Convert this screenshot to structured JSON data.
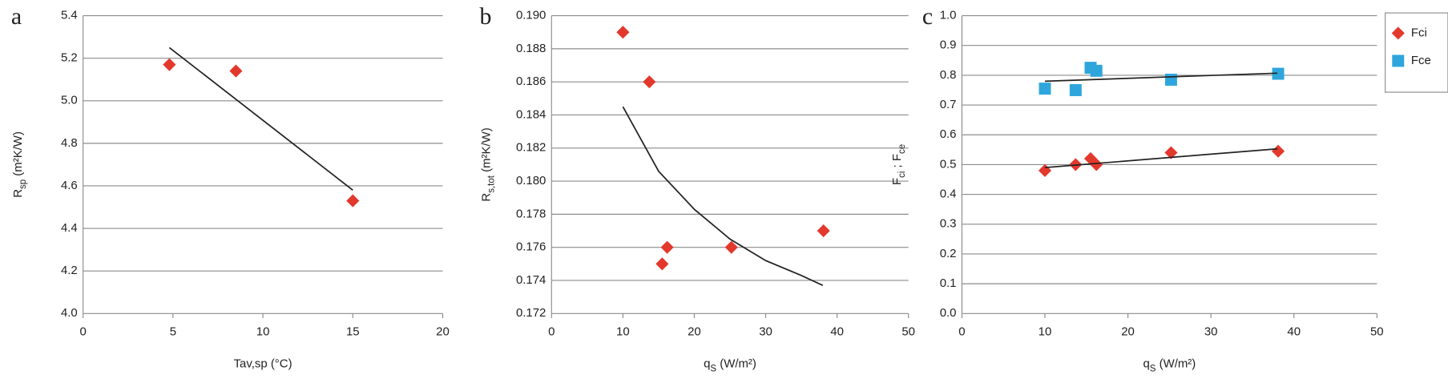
{
  "chart_data": [
    {
      "type": "scatter",
      "title": "a",
      "xlabel": [
        {
          "text": "Tav,sp (°C)"
        }
      ],
      "ylabel": [
        {
          "text": "R"
        },
        {
          "text": "sp",
          "sub": true
        },
        {
          "text": " (m²K/W)"
        }
      ],
      "xlim": [
        0,
        20
      ],
      "xticks": [
        0,
        5,
        10,
        15,
        20
      ],
      "ylim": [
        4,
        5.4
      ],
      "yticks": [
        {
          "value": 4,
          "label": "4.0"
        },
        4.2,
        4.4,
        4.6,
        4.8,
        {
          "value": 5,
          "label": "5.0"
        },
        5.2,
        5.4
      ],
      "grid": true,
      "series": [
        {
          "color": "#e3382c",
          "marker": "diamond",
          "x": [
            4.8,
            8.5,
            15
          ],
          "values": [
            5.17,
            5.14,
            4.53
          ],
          "fit": {
            "color": "#222222",
            "x": [
              4.8,
              15
            ],
            "values": [
              5.25,
              4.58
            ]
          }
        }
      ]
    },
    {
      "type": "scatter",
      "title": "b",
      "xlabel": [
        {
          "text": "q"
        },
        {
          "text": "S",
          "sub": true
        },
        {
          "text": " (W/m²)"
        }
      ],
      "ylabel": [
        {
          "text": "R"
        },
        {
          "text": "s,tot",
          "sub": true
        },
        {
          "text": " (m²K/W)"
        }
      ],
      "xlim": [
        0,
        50
      ],
      "xticks": [
        0,
        10,
        20,
        30,
        40,
        50
      ],
      "ylim": [
        0.172,
        0.19
      ],
      "yticks": [
        0.172,
        0.174,
        0.176,
        0.178,
        {
          "value": 0.18,
          "label": "0.180"
        },
        0.182,
        0.184,
        0.186,
        0.188,
        {
          "value": 0.19,
          "label": "0.190"
        }
      ],
      "grid": true,
      "series": [
        {
          "color": "#e3382c",
          "marker": "diamond",
          "x": [
            10,
            13.7,
            15.5,
            16.2,
            25.2,
            38.1
          ],
          "values": [
            0.189,
            0.186,
            0.175,
            0.176,
            0.176,
            0.177
          ],
          "fit": {
            "color": "#222222",
            "x": [
              10,
              15,
              20,
              25,
              30,
              35,
              38
            ],
            "values": [
              0.1845,
              0.1806,
              0.1783,
              0.1765,
              0.1752,
              0.1743,
              0.1737
            ]
          }
        }
      ]
    },
    {
      "type": "scatter",
      "title": "c",
      "xlabel": [
        {
          "text": "q"
        },
        {
          "text": "S",
          "sub": true
        },
        {
          "text": " (W/m²)"
        }
      ],
      "ylabel": [
        {
          "text": "F"
        },
        {
          "text": "ci",
          "sub": true
        },
        {
          "text": " ; F"
        },
        {
          "text": "ce",
          "sub": true
        }
      ],
      "xlim": [
        0,
        50
      ],
      "xticks": [
        0,
        10,
        20,
        30,
        40,
        50
      ],
      "ylim": [
        0,
        1
      ],
      "yticks": [
        {
          "value": 0,
          "label": "0.0"
        },
        0.1,
        0.2,
        0.3,
        0.4,
        0.5,
        0.6,
        0.7,
        0.8,
        0.9,
        {
          "value": 1,
          "label": "1.0"
        }
      ],
      "grid": true,
      "legend": "right",
      "series": [
        {
          "name": "Fci",
          "color": "#e3382c",
          "marker": "diamond",
          "x": [
            10,
            13.7,
            15.5,
            16.2,
            25.2,
            38.1
          ],
          "values": [
            0.48,
            0.5,
            0.52,
            0.5,
            0.54,
            0.545
          ],
          "fit": {
            "color": "#222222",
            "x": [
              10,
              38
            ],
            "values": [
              0.49,
              0.553
            ]
          }
        },
        {
          "name": "Fce",
          "color": "#2ea6dc",
          "marker": "square",
          "x": [
            10,
            13.7,
            15.5,
            16.2,
            25.2,
            38.1
          ],
          "values": [
            0.755,
            0.75,
            0.825,
            0.815,
            0.785,
            0.805
          ],
          "fit": {
            "color": "#222222",
            "x": [
              10,
              38
            ],
            "values": [
              0.78,
              0.807
            ]
          }
        }
      ]
    }
  ]
}
